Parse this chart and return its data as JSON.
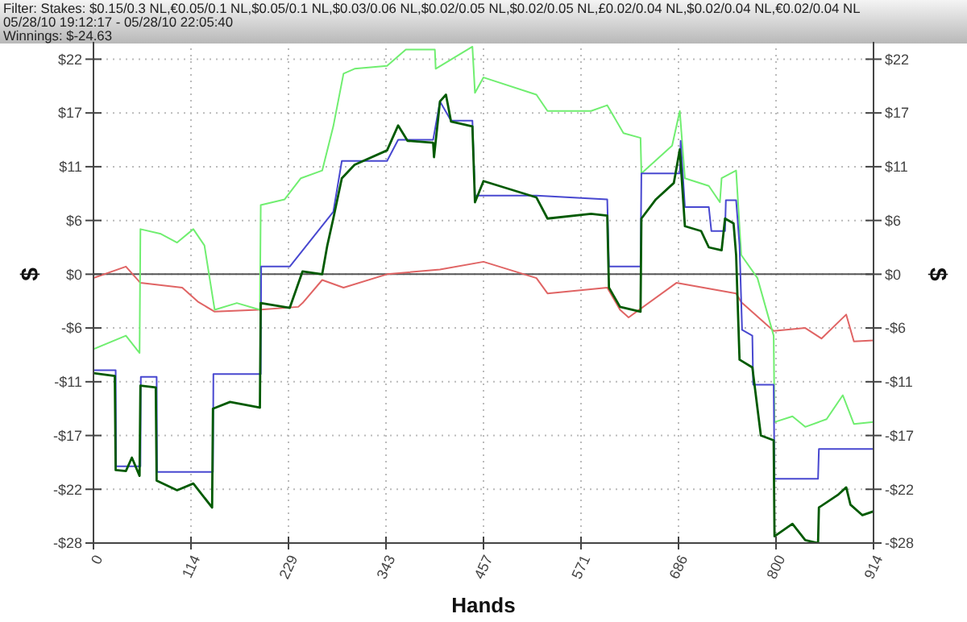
{
  "chart_data": {
    "type": "line",
    "title": "Filter: Stakes: $0.15/0.3 NL,€0.05/0.1 NL,$0.05/0.1 NL,$0.03/0.06 NL,$0.02/0.05 NL,$0.02/0.05 NL,£0.02/0.04 NL,$0.02/0.04 NL,€0.02/0.04 NL",
    "subtitle": "05/28/10 19:12:17 - 05/28/10 22:05:40",
    "annotations": [
      "Winnings: $-24.63"
    ],
    "xlabel": "Hands",
    "ylabel": "$",
    "y2label": "$",
    "xlim": [
      0,
      914
    ],
    "xticks": [
      0,
      {
        "value": 114.25,
        "label": "114"
      },
      {
        "value": 228.5,
        "label": "229"
      },
      {
        "value": 342.75,
        "label": "343"
      },
      457,
      {
        "value": 571.25,
        "label": "571"
      },
      {
        "value": 685.5,
        "label": "686"
      },
      {
        "value": 799.75,
        "label": "800"
      },
      914
    ],
    "ylim": [
      -28,
      24.2
    ],
    "yticks": [
      {
        "value": 22.4,
        "label": "$22"
      },
      {
        "value": 16.8,
        "label": "$17"
      },
      {
        "value": 11.2,
        "label": "$11"
      },
      {
        "value": 5.6,
        "label": "$6"
      },
      {
        "value": 0,
        "label": "$0"
      },
      {
        "value": -5.6,
        "label": "-$6"
      },
      {
        "value": -11.2,
        "label": "-$11"
      },
      {
        "value": -16.8,
        "label": "-$17"
      },
      {
        "value": -22.4,
        "label": "-$22"
      },
      {
        "value": -28,
        "label": "-$28"
      }
    ],
    "y2lim": [
      -28,
      24.2
    ],
    "y2ticks": [
      {
        "value": 22.4,
        "label": "$22"
      },
      {
        "value": 16.8,
        "label": "$17"
      },
      {
        "value": 11.2,
        "label": "$11"
      },
      {
        "value": 5.6,
        "label": "$6"
      },
      {
        "value": 0,
        "label": "$0"
      },
      {
        "value": -5.6,
        "label": "-$6"
      },
      {
        "value": -11.2,
        "label": "-$11"
      },
      {
        "value": -16.8,
        "label": "-$17"
      },
      {
        "value": -22.4,
        "label": "-$22"
      },
      {
        "value": -28,
        "label": "-$28"
      }
    ],
    "grid": true,
    "line_style": "solid",
    "series": [
      {
        "color": "#e06464",
        "x": [
          0,
          38,
          55,
          104,
          123,
          142,
          193,
          240,
          245,
          268,
          293,
          344,
          406,
          457,
          519,
          532,
          602,
          617,
          627,
          683,
          753,
          759,
          797,
          834,
          853,
          882,
          891,
          914
        ],
        "values": [
          -0.4,
          0.8,
          -0.9,
          -1.4,
          -2.9,
          -3.9,
          -3.7,
          -3.4,
          -3,
          -0.6,
          -1.4,
          0,
          0.5,
          1.3,
          -0.4,
          -2,
          -1.4,
          -3.7,
          -4.5,
          -0.9,
          -2,
          -2.9,
          -5.9,
          -5.6,
          -6.7,
          -4.2,
          -7,
          -6.9
        ]
      },
      {
        "color": "#70ee70",
        "x": [
          0,
          38,
          54,
          55,
          79,
          98,
          117,
          130,
          142,
          168,
          195,
          196,
          224,
          243,
          268,
          281,
          293,
          306,
          344,
          366,
          400,
          401,
          444,
          447,
          457,
          519,
          532,
          583,
          602,
          621,
          641,
          642,
          678,
          687,
          693,
          721,
          734,
          736,
          753,
          759,
          778,
          797,
          798,
          819,
          834,
          859,
          878,
          891,
          914
        ],
        "values": [
          -7.8,
          -6.4,
          -8.2,
          4.7,
          4.2,
          3.3,
          4.7,
          3,
          -3.7,
          -3,
          -3.7,
          7.2,
          7.8,
          10,
          10.8,
          15.4,
          20.9,
          21.4,
          21.7,
          23.4,
          23.4,
          21.4,
          23.7,
          18.9,
          20.5,
          18.7,
          17,
          17,
          17.6,
          14.7,
          14.2,
          10.5,
          13.4,
          17,
          10,
          9.2,
          7.5,
          10,
          10.8,
          2,
          -0.4,
          -6.4,
          -15.4,
          -14.8,
          -15.9,
          -15.1,
          -12.6,
          -15.6,
          -15.4
        ]
      },
      {
        "color": "#4848d0",
        "x": [
          0,
          26,
          26.5,
          55,
          55.5,
          74,
          74.5,
          140,
          140.5,
          196,
          196.5,
          230,
          281,
          291,
          344,
          357,
          398,
          406,
          419,
          444,
          447,
          519,
          602,
          604,
          641,
          642,
          687,
          688,
          693,
          721,
          724,
          740,
          741,
          753,
          757,
          760,
          772,
          773,
          797,
          798,
          849,
          850,
          914
        ],
        "values": [
          -10,
          -10,
          -20,
          -20,
          -10.7,
          -10.7,
          -20.6,
          -20.6,
          -10.4,
          -10.4,
          0.8,
          0.8,
          6.5,
          11.8,
          11.8,
          14,
          14,
          18,
          16,
          16,
          8.2,
          8.2,
          7.8,
          0.8,
          0.8,
          10.5,
          10.5,
          13.9,
          7,
          7,
          4.5,
          4.5,
          7.7,
          7.7,
          3,
          -5.8,
          -6.4,
          -11.5,
          -11.5,
          -21.3,
          -21.3,
          -18.2,
          -18.2
        ]
      },
      {
        "color": "#005a00",
        "x": [
          0,
          25,
          26,
          38,
          45,
          54,
          55,
          73,
          74,
          98,
          117,
          139,
          140,
          160,
          195,
          196,
          230,
          245,
          268,
          274,
          281,
          291,
          306,
          344,
          357,
          368,
          398,
          399,
          406,
          413,
          419,
          444,
          447,
          457,
          519,
          532,
          583,
          602,
          604,
          617,
          641,
          642,
          659,
          680,
          687,
          693,
          712,
          721,
          736,
          740,
          750,
          753,
          757,
          772,
          782,
          797,
          798,
          819,
          834,
          849,
          850,
          872,
          882,
          887,
          901,
          914
        ],
        "values": [
          -10.3,
          -10.6,
          -20.4,
          -20.5,
          -19.1,
          -21,
          -11.6,
          -11.8,
          -21.5,
          -22.5,
          -21.8,
          -24.3,
          -14,
          -13.3,
          -13.9,
          -3,
          -3.5,
          0.3,
          0,
          3,
          5.8,
          10,
          11.4,
          12.9,
          15.5,
          13.9,
          13.7,
          12.2,
          18,
          18.7,
          15.9,
          15.4,
          7.5,
          9.7,
          8,
          5.8,
          6.3,
          6.1,
          -1.4,
          -3.4,
          -3.9,
          5.8,
          7.8,
          9.5,
          13,
          5,
          4.5,
          2.8,
          2.5,
          5.8,
          5.3,
          2,
          -8.9,
          -9.7,
          -16.8,
          -17.3,
          -27.3,
          -26,
          -27.7,
          -28,
          -24.3,
          -23,
          -22.2,
          -24,
          -25.1,
          -24.7
        ]
      }
    ]
  }
}
